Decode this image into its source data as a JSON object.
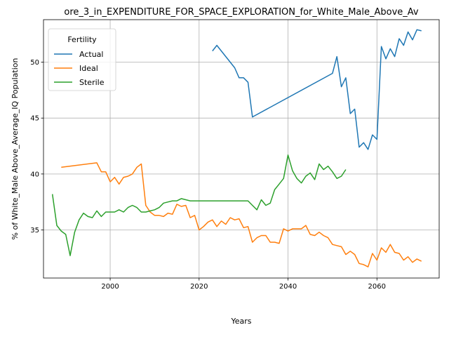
{
  "chart_data": {
    "type": "line",
    "title": "ore_3_in_EXPENDITURE_FOR_SPACE_EXPLORATION_for_White_Male_Above_Av",
    "xlabel": "Years",
    "ylabel": "% of White_Male Above_Average_IQ Population",
    "xlim": [
      1985,
      2074
    ],
    "ylim": [
      30.7,
      53.8
    ],
    "xticks": [
      2000,
      2020,
      2040,
      2060
    ],
    "yticks": [
      35,
      40,
      45,
      50
    ],
    "grid": true,
    "legend": {
      "title": "Fertility",
      "placement": "top-left"
    },
    "series": [
      {
        "name": "Actual",
        "color": "#1f77b4",
        "points": [
          [
            2023,
            51.0
          ],
          [
            2024,
            51.5
          ],
          [
            2028,
            49.5
          ],
          [
            2029,
            48.6
          ],
          [
            2030,
            48.6
          ],
          [
            2031,
            48.2
          ],
          [
            2032,
            45.1
          ],
          [
            2050,
            49.0
          ],
          [
            2051,
            50.5
          ],
          [
            2052,
            47.8
          ],
          [
            2053,
            48.6
          ],
          [
            2054,
            45.4
          ],
          [
            2055,
            45.8
          ],
          [
            2056,
            42.4
          ],
          [
            2057,
            42.8
          ],
          [
            2058,
            42.2
          ],
          [
            2059,
            43.5
          ],
          [
            2060,
            43.1
          ],
          [
            2061,
            51.4
          ],
          [
            2062,
            50.3
          ],
          [
            2063,
            51.2
          ],
          [
            2064,
            50.5
          ],
          [
            2065,
            52.1
          ],
          [
            2066,
            51.5
          ],
          [
            2067,
            52.7
          ],
          [
            2068,
            52.0
          ],
          [
            2069,
            52.9
          ],
          [
            2070,
            52.8
          ]
        ]
      },
      {
        "name": "Ideal",
        "color": "#ff7f0e",
        "points": [
          [
            1989,
            40.6
          ],
          [
            1997,
            41.0
          ],
          [
            1998,
            40.2
          ],
          [
            1999,
            40.2
          ],
          [
            2000,
            39.3
          ],
          [
            2001,
            39.7
          ],
          [
            2002,
            39.1
          ],
          [
            2003,
            39.7
          ],
          [
            2004,
            39.8
          ],
          [
            2005,
            40.0
          ],
          [
            2006,
            40.6
          ],
          [
            2007,
            40.9
          ],
          [
            2008,
            37.2
          ],
          [
            2009,
            36.6
          ],
          [
            2010,
            36.3
          ],
          [
            2011,
            36.3
          ],
          [
            2012,
            36.2
          ],
          [
            2013,
            36.5
          ],
          [
            2014,
            36.4
          ],
          [
            2015,
            37.3
          ],
          [
            2016,
            37.1
          ],
          [
            2017,
            37.2
          ],
          [
            2018,
            36.1
          ],
          [
            2019,
            36.3
          ],
          [
            2020,
            35.0
          ],
          [
            2021,
            35.3
          ],
          [
            2022,
            35.7
          ],
          [
            2023,
            35.9
          ],
          [
            2024,
            35.3
          ],
          [
            2025,
            35.8
          ],
          [
            2026,
            35.5
          ],
          [
            2027,
            36.1
          ],
          [
            2028,
            35.9
          ],
          [
            2029,
            36.0
          ],
          [
            2030,
            35.2
          ],
          [
            2031,
            35.3
          ],
          [
            2032,
            33.9
          ],
          [
            2033,
            34.3
          ],
          [
            2034,
            34.5
          ],
          [
            2035,
            34.5
          ],
          [
            2036,
            33.9
          ],
          [
            2037,
            33.9
          ],
          [
            2038,
            33.8
          ],
          [
            2039,
            35.1
          ],
          [
            2040,
            34.9
          ],
          [
            2041,
            35.1
          ],
          [
            2042,
            35.1
          ],
          [
            2043,
            35.1
          ],
          [
            2044,
            35.4
          ],
          [
            2045,
            34.6
          ],
          [
            2046,
            34.5
          ],
          [
            2047,
            34.8
          ],
          [
            2048,
            34.5
          ],
          [
            2049,
            34.3
          ],
          [
            2050,
            33.7
          ],
          [
            2051,
            33.6
          ],
          [
            2052,
            33.5
          ],
          [
            2053,
            32.8
          ],
          [
            2054,
            33.1
          ],
          [
            2055,
            32.8
          ],
          [
            2056,
            32.0
          ],
          [
            2057,
            31.9
          ],
          [
            2058,
            31.7
          ],
          [
            2059,
            32.9
          ],
          [
            2060,
            32.3
          ],
          [
            2061,
            33.4
          ],
          [
            2062,
            33.0
          ],
          [
            2063,
            33.7
          ],
          [
            2064,
            33.0
          ],
          [
            2065,
            32.9
          ],
          [
            2066,
            32.3
          ],
          [
            2067,
            32.6
          ],
          [
            2068,
            32.1
          ],
          [
            2069,
            32.4
          ],
          [
            2070,
            32.2
          ]
        ]
      },
      {
        "name": "Sterile",
        "color": "#2ca02c",
        "points": [
          [
            1987,
            38.2
          ],
          [
            1988,
            35.4
          ],
          [
            1989,
            34.9
          ],
          [
            1990,
            34.6
          ],
          [
            1991,
            32.7
          ],
          [
            1992,
            34.8
          ],
          [
            1993,
            35.9
          ],
          [
            1994,
            36.5
          ],
          [
            1995,
            36.2
          ],
          [
            1996,
            36.1
          ],
          [
            1997,
            36.7
          ],
          [
            1998,
            36.2
          ],
          [
            1999,
            36.6
          ],
          [
            2000,
            36.6
          ],
          [
            2001,
            36.6
          ],
          [
            2002,
            36.8
          ],
          [
            2003,
            36.6
          ],
          [
            2004,
            37.0
          ],
          [
            2005,
            37.2
          ],
          [
            2006,
            37.0
          ],
          [
            2007,
            36.6
          ],
          [
            2008,
            36.6
          ],
          [
            2009,
            36.7
          ],
          [
            2010,
            36.8
          ],
          [
            2011,
            37.0
          ],
          [
            2012,
            37.4
          ],
          [
            2013,
            37.5
          ],
          [
            2014,
            37.6
          ],
          [
            2015,
            37.6
          ],
          [
            2016,
            37.8
          ],
          [
            2017,
            37.7
          ],
          [
            2018,
            37.6
          ],
          [
            2031,
            37.6
          ],
          [
            2032,
            37.2
          ],
          [
            2033,
            36.8
          ],
          [
            2034,
            37.7
          ],
          [
            2035,
            37.2
          ],
          [
            2036,
            37.4
          ],
          [
            2037,
            38.6
          ],
          [
            2038,
            39.1
          ],
          [
            2039,
            39.6
          ],
          [
            2040,
            41.7
          ],
          [
            2041,
            40.3
          ],
          [
            2042,
            39.6
          ],
          [
            2043,
            39.2
          ],
          [
            2044,
            39.8
          ],
          [
            2045,
            40.1
          ],
          [
            2046,
            39.5
          ],
          [
            2047,
            40.9
          ],
          [
            2048,
            40.4
          ],
          [
            2049,
            40.7
          ],
          [
            2050,
            40.2
          ],
          [
            2051,
            39.6
          ],
          [
            2052,
            39.8
          ],
          [
            2053,
            40.4
          ]
        ]
      }
    ]
  }
}
